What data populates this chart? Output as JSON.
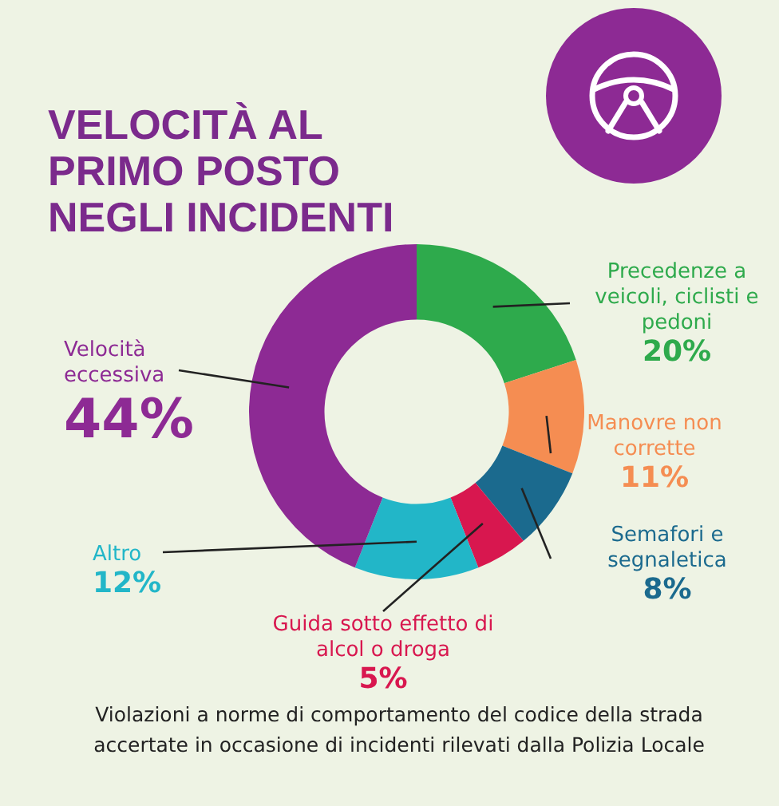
{
  "chart_data": {
    "type": "donut",
    "title": "VELOCITÀ AL PRIMO POSTO NEGLI INCIDENTI",
    "categories": [
      "Precedenze a veicoli, ciclisti e pedoni",
      "Manovre non corrette",
      "Semafori e segnaletica",
      "Guida sotto effetto di alcol o droga",
      "Altro",
      "Velocità eccessiva"
    ],
    "values": [
      20,
      11,
      8,
      5,
      12,
      44
    ],
    "colors": [
      "#2eaa4c",
      "#f58d52",
      "#1b6a8e",
      "#d8174f",
      "#22b6c8",
      "#8d2a94"
    ],
    "value_labels": [
      "20%",
      "11%",
      "8%",
      "5%",
      "12%",
      "44%"
    ],
    "annotations": [
      "Violazioni a norme di comportamento del codice della strada accertate in occasione di incidenti rilevati dalla Polizia Locale"
    ],
    "legend": false
  }
}
